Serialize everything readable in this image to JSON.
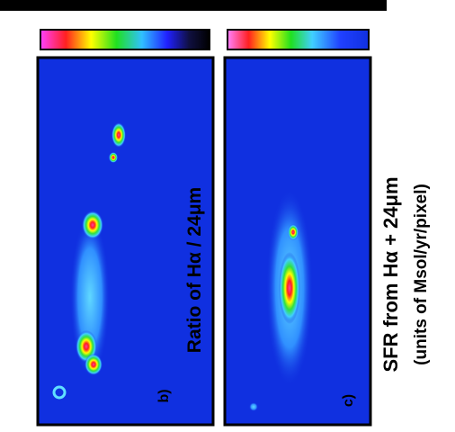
{
  "panels": [
    {
      "label": "b)",
      "caption": "Ratio of Hα / 24μm"
    },
    {
      "label": "c)"
    }
  ],
  "side_caption": {
    "title": "SFR from Hα + 24μm",
    "units": "(units of Msol/yr/pixel)"
  }
}
